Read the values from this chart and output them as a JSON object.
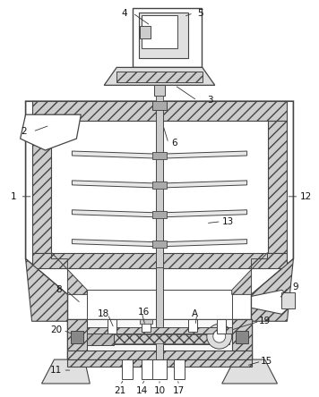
{
  "bg_color": "#ffffff",
  "line_color": "#444444",
  "figsize": [
    3.56,
    4.44
  ],
  "dpi": 100,
  "label_fs": 7.5
}
